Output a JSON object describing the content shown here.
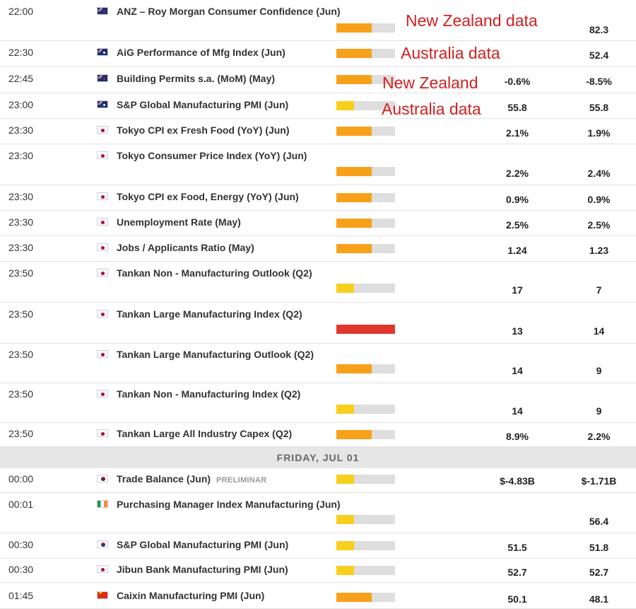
{
  "rows": [
    {
      "time": "22:00",
      "flag": "nz",
      "event": "ANZ – Roy Morgan Consumer Confidence (Jun)",
      "impact": "medium",
      "actual": "",
      "previous": "82.3"
    },
    {
      "time": "22:30",
      "flag": "au",
      "event": "AiG Performance of Mfg Index (Jun)",
      "impact": "medium",
      "actual": "",
      "previous": "52.4"
    },
    {
      "time": "22:45",
      "flag": "nz",
      "event": "Building Permits s.a. (MoM) (May)",
      "impact": "medium",
      "actual": "-0.6%",
      "previous": "-8.5%"
    },
    {
      "time": "23:00",
      "flag": "au",
      "event": "S&P Global Manufacturing PMI (Jun)",
      "impact": "low",
      "actual": "55.8",
      "previous": "55.8"
    },
    {
      "time": "23:30",
      "flag": "jp",
      "event": "Tokyo CPI ex Fresh Food (YoY) (Jun)",
      "impact": "medium",
      "actual": "2.1%",
      "previous": "1.9%"
    },
    {
      "time": "23:30",
      "flag": "jp",
      "event": "Tokyo Consumer Price Index (YoY) (Jun)",
      "impact": "medium",
      "actual": "2.2%",
      "previous": "2.4%"
    },
    {
      "time": "23:30",
      "flag": "jp",
      "event": "Tokyo CPI ex Food, Energy (YoY) (Jun)",
      "impact": "medium",
      "actual": "0.9%",
      "previous": "0.9%"
    },
    {
      "time": "23:30",
      "flag": "jp",
      "event": "Unemployment Rate (May)",
      "impact": "medium",
      "actual": "2.5%",
      "previous": "2.5%"
    },
    {
      "time": "23:30",
      "flag": "jp",
      "event": "Jobs / Applicants Ratio (May)",
      "impact": "medium",
      "actual": "1.24",
      "previous": "1.23"
    },
    {
      "time": "23:50",
      "flag": "jp",
      "event": "Tankan Non - Manufacturing Outlook (Q2)",
      "impact": "low",
      "actual": "17",
      "previous": "7"
    },
    {
      "time": "23:50",
      "flag": "jp",
      "event": "Tankan Large Manufacturing Index (Q2)",
      "impact": "high",
      "actual": "13",
      "previous": "14"
    },
    {
      "time": "23:50",
      "flag": "jp",
      "event": "Tankan Large Manufacturing Outlook (Q2)",
      "impact": "medium",
      "actual": "14",
      "previous": "9"
    },
    {
      "time": "23:50",
      "flag": "jp",
      "event": "Tankan Non - Manufacturing Index (Q2)",
      "impact": "low",
      "actual": "14",
      "previous": "9"
    },
    {
      "time": "23:50",
      "flag": "jp",
      "event": "Tankan Large All Industry Capex (Q2)",
      "impact": "medium",
      "actual": "8.9%",
      "previous": "2.2%"
    },
    {
      "time": "00:00",
      "flag": "kr",
      "event": "Trade Balance (Jun)",
      "tag": "PRELIMINAR",
      "impact": "low",
      "actual": "$-4.83B",
      "previous": "$-1.71B"
    },
    {
      "time": "00:01",
      "flag": "ie",
      "event": "Purchasing Manager Index Manufacturing (Jun)",
      "impact": "low",
      "actual": "",
      "previous": "56.4"
    },
    {
      "time": "00:30",
      "flag": "kr",
      "event": "S&P Global Manufacturing PMI (Jun)",
      "impact": "low",
      "actual": "51.5",
      "previous": "51.8"
    },
    {
      "time": "00:30",
      "flag": "jp",
      "event": "Jibun Bank Manufacturing PMI (Jun)",
      "impact": "low",
      "actual": "52.7",
      "previous": "52.7"
    },
    {
      "time": "01:45",
      "flag": "cn",
      "event": "Caixin Manufacturing PMI (Jun)",
      "impact": "medium",
      "actual": "50.1",
      "previous": "48.1"
    }
  ],
  "day_separator": "FRIDAY, JUL 01",
  "annotations": [
    "New Zealand data",
    "Australia data",
    "New Zealand",
    "Australia data"
  ],
  "impact_levels": {
    "low": 0.3,
    "medium": 0.6,
    "high": 1.0
  },
  "colors": {
    "low": "#f8cf1c",
    "medium": "#f7a11a",
    "high": "#e0372d",
    "annotation": "#d21f1f"
  }
}
